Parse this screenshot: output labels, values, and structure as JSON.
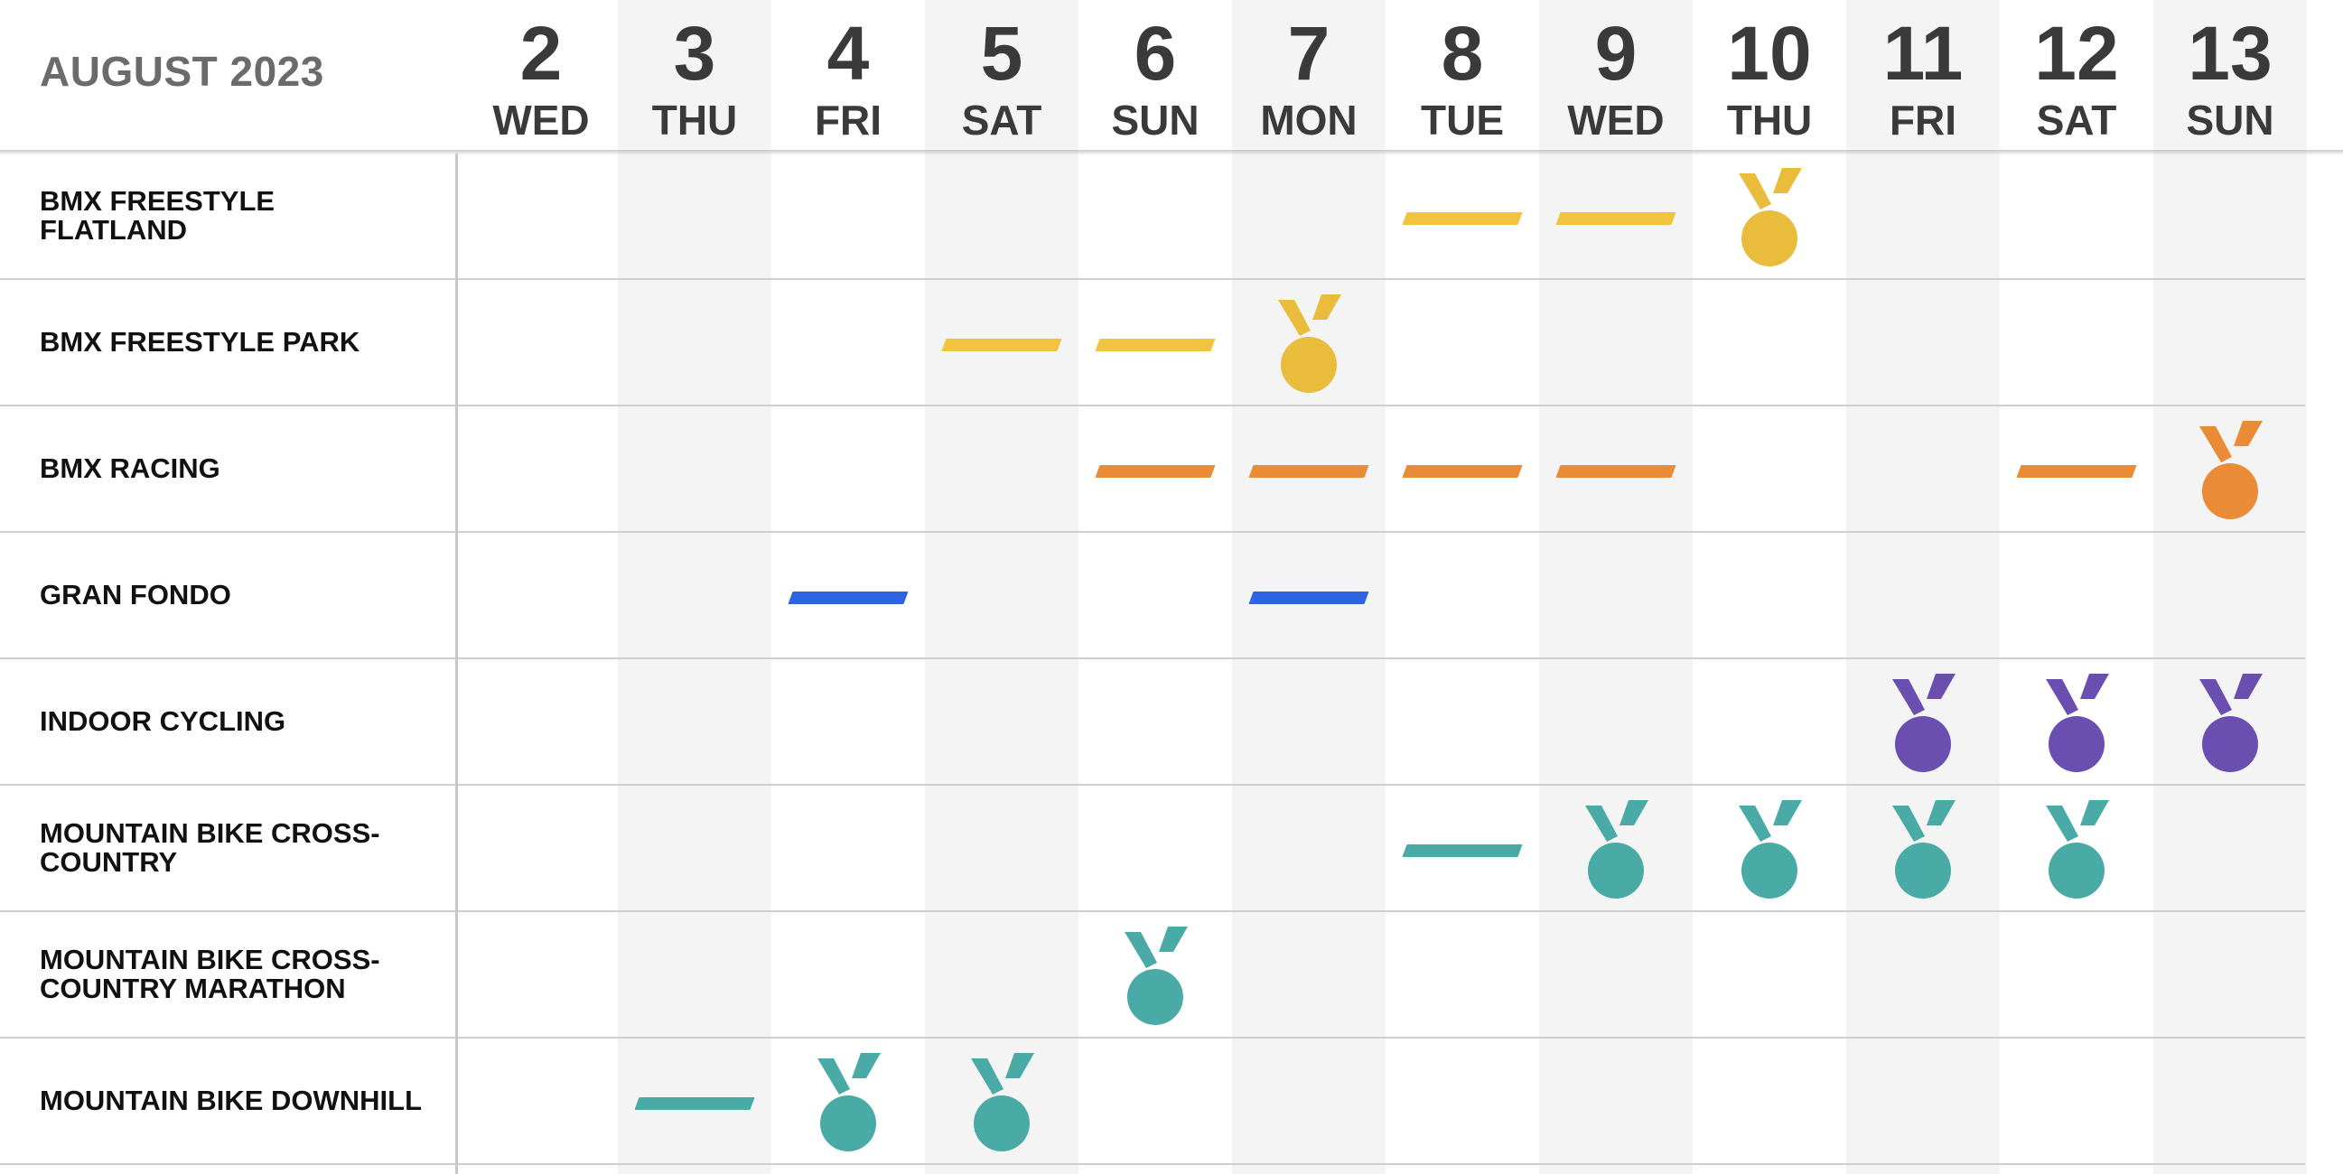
{
  "calendar": {
    "month_label": "AUGUST 2023"
  },
  "days": [
    {
      "num": "2",
      "name": "WED"
    },
    {
      "num": "3",
      "name": "THU"
    },
    {
      "num": "4",
      "name": "FRI"
    },
    {
      "num": "5",
      "name": "SAT"
    },
    {
      "num": "6",
      "name": "SUN"
    },
    {
      "num": "7",
      "name": "MON"
    },
    {
      "num": "8",
      "name": "TUE"
    },
    {
      "num": "9",
      "name": "WED"
    },
    {
      "num": "10",
      "name": "THU"
    },
    {
      "num": "11",
      "name": "FRI"
    },
    {
      "num": "12",
      "name": "SAT"
    },
    {
      "num": "13",
      "name": "SUN"
    }
  ],
  "colors": {
    "gold": "#e9bc3c",
    "gold_dash": "#f0c43f",
    "orange": "#e98b37",
    "blue": "#2f64e0",
    "purple": "#6a4fb0",
    "teal": "#4aaba6",
    "band": "#f4f4f4"
  },
  "events": [
    {
      "name": "BMX FREESTYLE FLATLAND",
      "color": "gold",
      "dash_days": [
        "8",
        "9"
      ],
      "medal_days": [
        "10"
      ]
    },
    {
      "name": "BMX FREESTYLE PARK",
      "color": "gold",
      "dash_days": [
        "5",
        "6"
      ],
      "medal_days": [
        "7"
      ]
    },
    {
      "name": "BMX RACING",
      "color": "orange",
      "dash_days": [
        "6",
        "7",
        "8",
        "9",
        "12"
      ],
      "medal_days": [
        "13"
      ]
    },
    {
      "name": "GRAN FONDO",
      "color": "blue",
      "dash_days": [
        "4",
        "7"
      ],
      "medal_days": []
    },
    {
      "name": "INDOOR CYCLING",
      "color": "purple",
      "dash_days": [],
      "medal_days": [
        "11",
        "12",
        "13"
      ]
    },
    {
      "name": "MOUNTAIN BIKE CROSS-COUNTRY",
      "color": "teal",
      "dash_days": [
        "8"
      ],
      "medal_days": [
        "9",
        "10",
        "11",
        "12"
      ]
    },
    {
      "name": "MOUNTAIN BIKE CROSS-COUNTRY MARATHON",
      "color": "teal",
      "dash_days": [],
      "medal_days": [
        "6"
      ]
    },
    {
      "name": "MOUNTAIN BIKE DOWNHILL",
      "color": "teal",
      "dash_days": [
        "3"
      ],
      "medal_days": [
        "4",
        "5"
      ]
    }
  ],
  "icons": {
    "dash": "session-dash",
    "medal": "medal-icon"
  }
}
